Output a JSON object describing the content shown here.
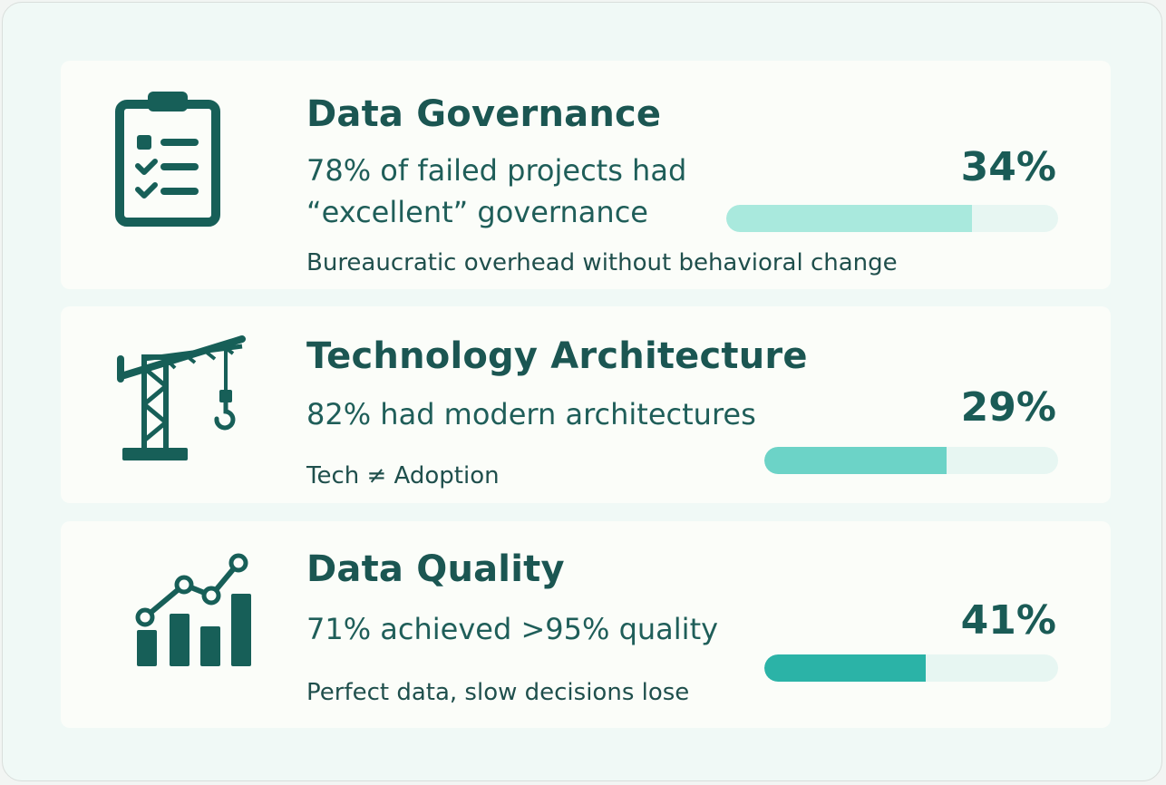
{
  "cards": [
    {
      "title": "Data Governance",
      "stat": "78% of failed projects had “excellent” governance",
      "note": "Bureaucratic overhead without behavioral change",
      "percent_label": "34%",
      "bar_fill_fraction": 0.74,
      "bar_color": "#a9e9dd",
      "icon": "clipboard-checklist-icon"
    },
    {
      "title": "Technology Architecture",
      "stat": "82% had modern architectures",
      "note": "Tech ≠ Adoption",
      "percent_label": "29%",
      "bar_fill_fraction": 0.62,
      "bar_color": "#6cd3c7",
      "icon": "construction-crane-icon"
    },
    {
      "title": "Data Quality",
      "stat": "71% achieved >95% quality",
      "note": "Perfect data, slow decisions lose",
      "percent_label": "41%",
      "bar_fill_fraction": 0.55,
      "bar_color": "#2bb3a7",
      "icon": "bar-chart-trend-icon"
    }
  ],
  "colors": {
    "page_background": "#f0f9f6",
    "card_background": "#fbfdf9",
    "primary_text": "#1b5652",
    "bar_track": "#e7f6f2"
  }
}
